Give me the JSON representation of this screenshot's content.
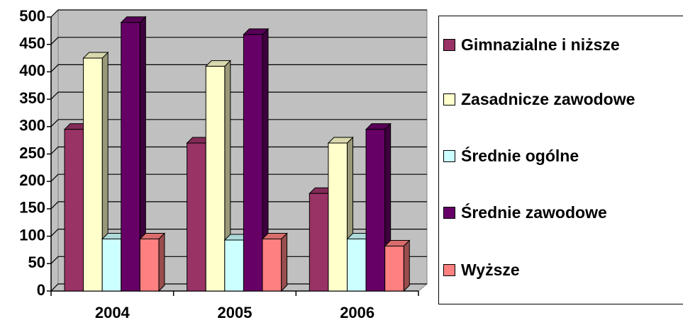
{
  "chart_data": {
    "type": "bar3d",
    "categories": [
      "2004",
      "2005",
      "2006"
    ],
    "series": [
      {
        "name": "Gimnazialne i niższe",
        "color": "#993366",
        "values": [
          295,
          270,
          178
        ]
      },
      {
        "name": "Zasadnicze zawodowe",
        "color": "#ffffcc",
        "values": [
          425,
          410,
          270
        ]
      },
      {
        "name": "Średnie ogólne",
        "color": "#ccffff",
        "values": [
          95,
          93,
          95
        ]
      },
      {
        "name": "Średnie zawodowe",
        "color": "#660066",
        "values": [
          490,
          468,
          295
        ]
      },
      {
        "name": "Wyższe",
        "color": "#ff8080",
        "values": [
          95,
          95,
          82
        ]
      }
    ],
    "ylim": [
      0,
      500
    ],
    "yticks": [
      0,
      50,
      100,
      150,
      200,
      250,
      300,
      350,
      400,
      450,
      500
    ],
    "grid": true,
    "wall_color": "#c0c0c0",
    "legend": "right"
  }
}
